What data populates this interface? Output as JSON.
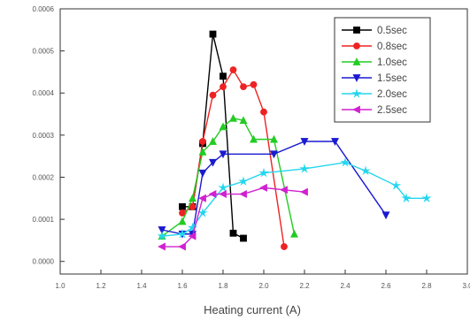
{
  "chart_data": {
    "type": "line",
    "xlabel": "Heating current (A)",
    "ylabel": "",
    "xlim": [
      1.0,
      3.0
    ],
    "ylim": [
      -3e-05,
      0.0006
    ],
    "x_ticks": [
      1.0,
      1.2,
      1.4,
      1.6,
      1.8,
      2.0,
      2.2,
      2.4,
      2.6,
      2.8,
      3.0
    ],
    "x_tick_labels": [
      "1.0",
      "1.2",
      "1.4",
      "1.6",
      "1.8",
      "2.0",
      "2.2",
      "2.4",
      "2.6",
      "2.8",
      "3.0"
    ],
    "y_ticks": [
      0,
      0.0001,
      0.0002,
      0.0003,
      0.0004,
      0.0005,
      0.0006
    ],
    "y_tick_labels": [
      "0.0000",
      "0.0001",
      "0.0002",
      "0.0003",
      "0.0004",
      "0.0005",
      "0.0006"
    ],
    "grid": false,
    "legend_position": "top-right",
    "series": [
      {
        "name": "0.5sec",
        "color": "#000000",
        "marker": "square",
        "x": [
          1.6,
          1.65,
          1.7,
          1.75,
          1.8,
          1.85,
          1.9
        ],
        "y": [
          0.00013,
          0.00013,
          0.00028,
          0.00054,
          0.00044,
          6.7e-05,
          5.5e-05
        ]
      },
      {
        "name": "0.8sec",
        "color": "#ee2222",
        "marker": "circle",
        "x": [
          1.6,
          1.65,
          1.7,
          1.75,
          1.8,
          1.85,
          1.9,
          1.95,
          2.0,
          2.1
        ],
        "y": [
          0.000115,
          0.00013,
          0.000285,
          0.000395,
          0.000415,
          0.000455,
          0.000415,
          0.00042,
          0.000355,
          3.5e-05
        ]
      },
      {
        "name": "1.0sec",
        "color": "#22cc22",
        "marker": "triangle-up",
        "x": [
          1.5,
          1.6,
          1.65,
          1.7,
          1.75,
          1.8,
          1.85,
          1.9,
          1.95,
          2.05,
          2.15
        ],
        "y": [
          6e-05,
          9.5e-05,
          0.00015,
          0.00026,
          0.000285,
          0.00032,
          0.00034,
          0.000335,
          0.00029,
          0.00029,
          6.5e-05
        ]
      },
      {
        "name": "1.5sec",
        "color": "#1a1ad0",
        "marker": "triangle-down",
        "x": [
          1.5,
          1.6,
          1.65,
          1.7,
          1.75,
          1.8,
          2.05,
          2.2,
          2.35,
          2.6
        ],
        "y": [
          7.5e-05,
          6.5e-05,
          6.5e-05,
          0.00021,
          0.000235,
          0.000255,
          0.000255,
          0.000285,
          0.000285,
          0.00011
        ]
      },
      {
        "name": "2.0sec",
        "color": "#22d6ee",
        "marker": "star",
        "x": [
          1.5,
          1.6,
          1.65,
          1.7,
          1.8,
          1.9,
          2.0,
          2.2,
          2.4,
          2.5,
          2.65,
          2.7,
          2.8
        ],
        "y": [
          6e-05,
          6.5e-05,
          8e-05,
          0.000115,
          0.000175,
          0.00019,
          0.00021,
          0.00022,
          0.000235,
          0.000215,
          0.00018,
          0.00015,
          0.00015
        ]
      },
      {
        "name": "2.5sec",
        "color": "#d020d0",
        "marker": "triangle-left",
        "x": [
          1.5,
          1.6,
          1.65,
          1.7,
          1.75,
          1.8,
          1.9,
          2.0,
          2.1,
          2.2
        ],
        "y": [
          3.5e-05,
          3.5e-05,
          6e-05,
          0.00015,
          0.00016,
          0.00016,
          0.00016,
          0.000175,
          0.00017,
          0.000165
        ]
      }
    ]
  }
}
